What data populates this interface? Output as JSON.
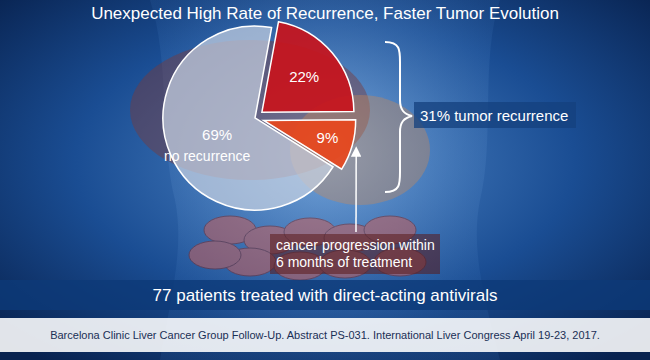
{
  "chart_data": {
    "type": "pie",
    "title": "Unexpected High Rate of Recurrence, Faster Tumor Evolution",
    "categories": [
      "no recurrence",
      null,
      "cancer progression within 6 months of treatment"
    ],
    "values": [
      69,
      22,
      9
    ],
    "value_labels": [
      "69%",
      "22%",
      "9%"
    ],
    "data_labels": true,
    "colors": [
      "#c9d3e3",
      "#c8141c",
      "#e8461c"
    ],
    "annotations": [
      "31% tumor recurrence",
      "77 patients treated with direct-acting antivirals"
    ],
    "caption": "Barcelona Clinic Liver Cancer Group Follow-Up. Abstract PS-031. International Liver Congress April 19-23, 2017."
  }
}
